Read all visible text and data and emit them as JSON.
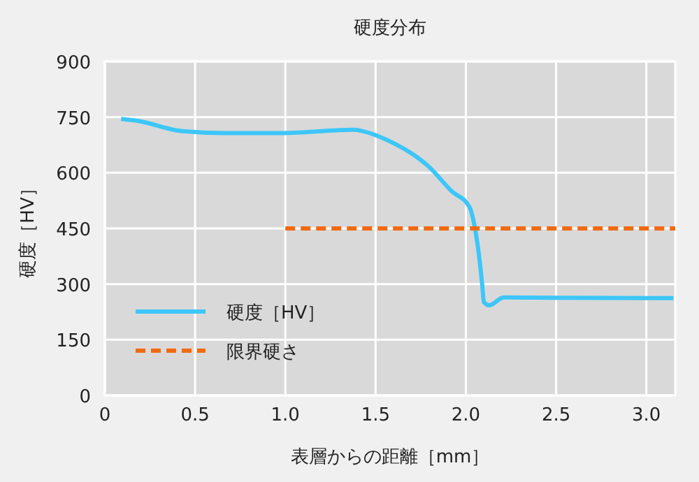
{
  "chart_data": {
    "type": "line",
    "title": "硬度分布",
    "xlabel": "表層からの距離［mm］",
    "ylabel": "硬度［HV］",
    "xlim": [
      0,
      3.16
    ],
    "xticks": [
      0,
      {
        "value": 0.5,
        "label": "0.5"
      },
      {
        "value": 1,
        "label": "1.0"
      },
      {
        "value": 1.5,
        "label": "1.5"
      },
      {
        "value": 2,
        "label": "2.0"
      },
      {
        "value": 2.5,
        "label": "2.5"
      },
      {
        "value": 3,
        "label": "3.0"
      }
    ],
    "ylim": [
      0,
      900
    ],
    "yticks": [
      0,
      150,
      300,
      450,
      600,
      750,
      900
    ],
    "grid": true,
    "legend": "bottom left",
    "series": [
      {
        "name": "硬度［HV］",
        "color": "#3cc6fa",
        "line_style": "solid",
        "x": [
          0.09,
          0.18,
          0.43,
          0.66,
          0.99,
          1.38,
          1.43,
          1.56,
          1.8,
          1.92,
          2.02,
          2.04,
          2.07,
          2.09,
          2.1,
          2.13,
          2.21,
          2.47,
          3.15
        ],
        "values": [
          745,
          740,
          712,
          707,
          707,
          716,
          712,
          689,
          614,
          551,
          508,
          476,
          388,
          301,
          251,
          243,
          264,
          263,
          262
        ]
      },
      {
        "name": "限界硬さ",
        "color": "#f26a10",
        "line_style": "dashed",
        "x": [
          1,
          3.16
        ],
        "values": [
          450,
          450
        ]
      }
    ]
  }
}
